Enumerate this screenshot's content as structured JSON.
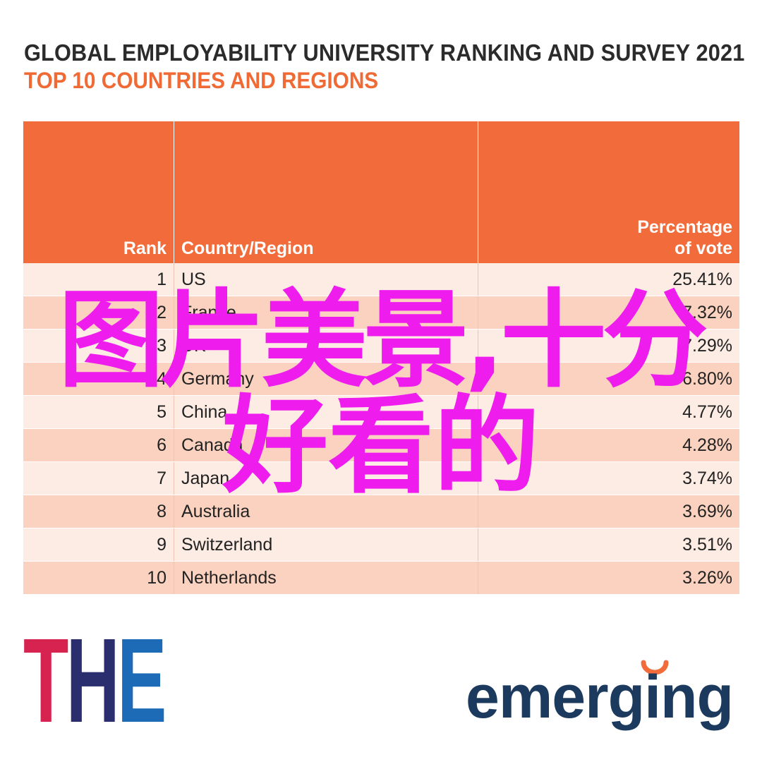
{
  "title": "GLOBAL EMPLOYABILITY UNIVERSITY RANKING AND SURVEY 2021",
  "subtitle": "TOP 10 COUNTRIES AND REGIONS",
  "chart_data": {
    "type": "table",
    "columns": [
      "Rank",
      "Country/Region",
      "Percentage of vote"
    ],
    "rows": [
      {
        "rank": "1",
        "country": "US",
        "pct": "25.41%"
      },
      {
        "rank": "2",
        "country": "France",
        "pct": "7.32%"
      },
      {
        "rank": "3",
        "country": "UK",
        "pct": "7.29%"
      },
      {
        "rank": "4",
        "country": "Germany",
        "pct": "6.80%"
      },
      {
        "rank": "5",
        "country": "China",
        "pct": "4.77%"
      },
      {
        "rank": "6",
        "country": "Canada",
        "pct": "4.28%"
      },
      {
        "rank": "7",
        "country": "Japan",
        "pct": "3.74%"
      },
      {
        "rank": "8",
        "country": "Australia",
        "pct": "3.69%"
      },
      {
        "rank": "9",
        "country": "Switzerland",
        "pct": "3.51%"
      },
      {
        "rank": "10",
        "country": "Netherlands",
        "pct": "3.26%"
      }
    ]
  },
  "colors": {
    "header": "#f26b3a",
    "row_light": "#fdece3",
    "row_dark": "#fad2bf",
    "overlay_text": "#ee1dee",
    "subtitle": "#ef6a34"
  },
  "overlay": {
    "line1": "图片美景,十分",
    "line2": "好看的"
  },
  "logos": {
    "the": "THE",
    "emerging": "emerging"
  }
}
